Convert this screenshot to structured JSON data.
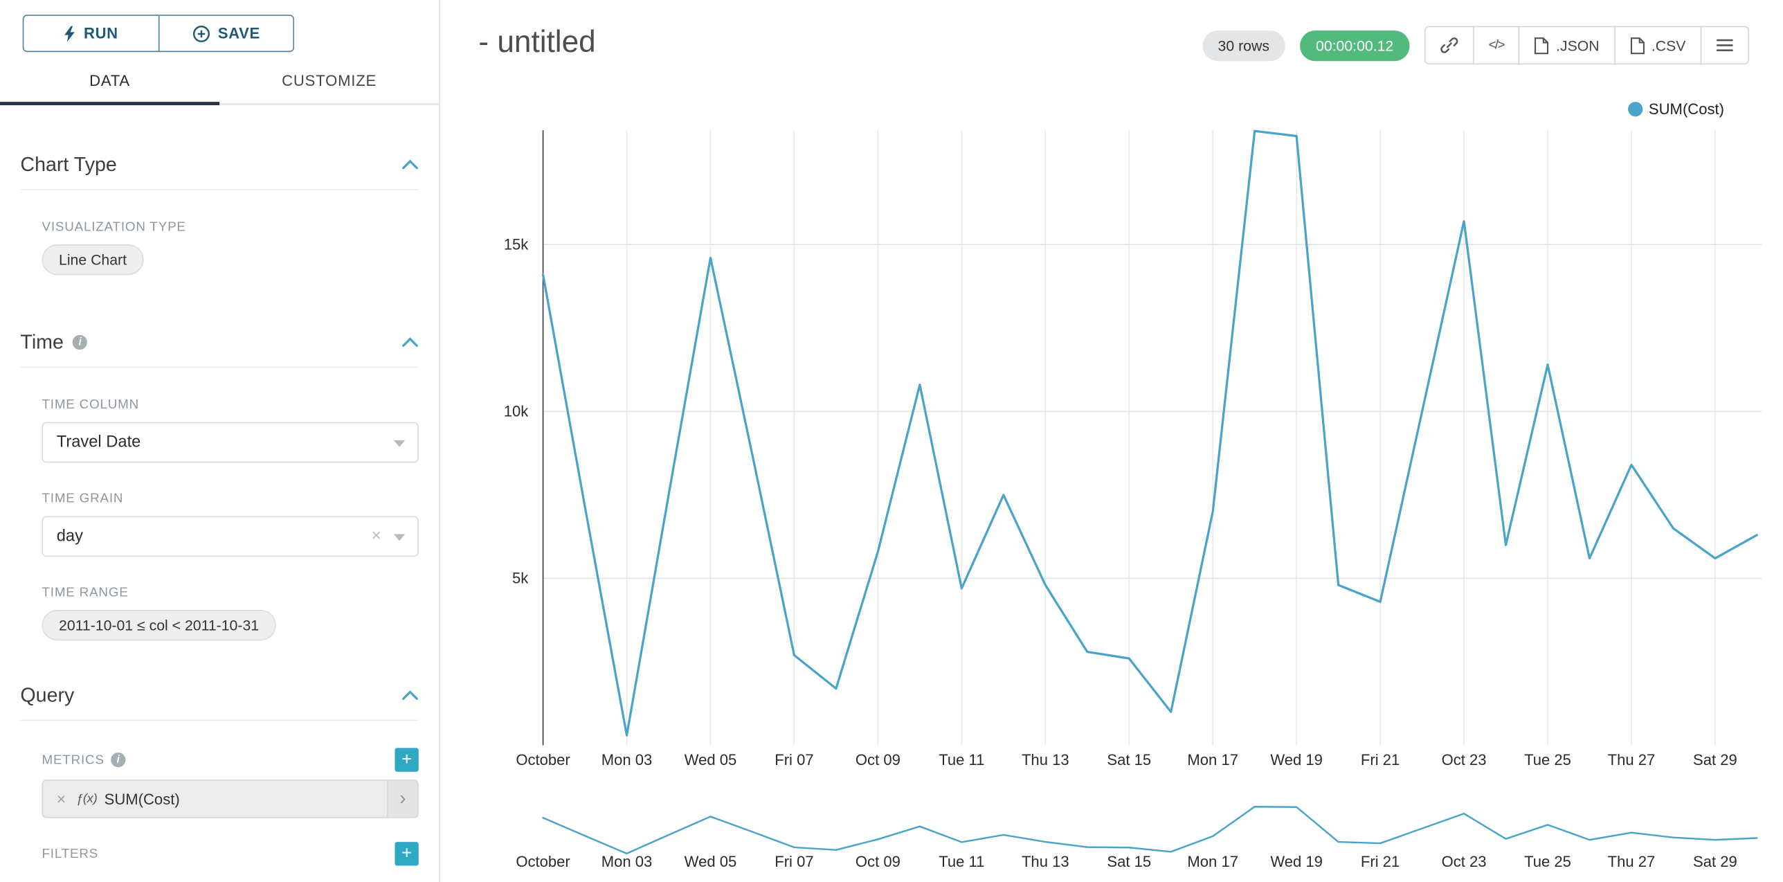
{
  "colors": {
    "accent": "#4aa4c7",
    "add_button": "#2fa8c4",
    "timer_green": "#53ba7d",
    "run_save_border": "#53819c",
    "run_save_text": "#1f5a74",
    "tab_active_underline": "#263445"
  },
  "icons": {
    "clear": "×",
    "embed": "</>",
    "add": "+",
    "expand": "›",
    "info": "i"
  },
  "sidebar": {
    "run_label": "RUN",
    "save_label": "SAVE",
    "tabs": [
      {
        "label": "DATA",
        "active": true
      },
      {
        "label": "CUSTOMIZE",
        "active": false
      }
    ],
    "sections": {
      "chart_type": {
        "title": "Chart Type",
        "viz_type_label": "VISUALIZATION TYPE",
        "viz_type_value": "Line Chart"
      },
      "time": {
        "title": "Time",
        "time_column_label": "TIME COLUMN",
        "time_column_value": "Travel Date",
        "time_grain_label": "TIME GRAIN",
        "time_grain_value": "day",
        "time_range_label": "TIME RANGE",
        "time_range_value": "2011-10-01 ≤ col < 2011-10-31"
      },
      "query": {
        "title": "Query",
        "metrics_label": "METRICS",
        "metric_prefix": "ƒ(x)",
        "metric_value": "SUM(Cost)",
        "filters_label": "FILTERS"
      }
    }
  },
  "header": {
    "title": "- untitled",
    "rows_badge": "30 rows",
    "timer": "00:00:00.12",
    "export_json_label": ".JSON",
    "export_csv_label": ".CSV"
  },
  "legend": {
    "label": "SUM(Cost)"
  },
  "chart_data": {
    "type": "line",
    "title": "- untitled",
    "xlabel": "",
    "ylabel": "",
    "x": [
      "2011-10-01",
      "2011-10-02",
      "2011-10-03",
      "2011-10-04",
      "2011-10-05",
      "2011-10-06",
      "2011-10-07",
      "2011-10-08",
      "2011-10-09",
      "2011-10-10",
      "2011-10-11",
      "2011-10-12",
      "2011-10-13",
      "2011-10-14",
      "2011-10-15",
      "2011-10-16",
      "2011-10-17",
      "2011-10-18",
      "2011-10-19",
      "2011-10-20",
      "2011-10-21",
      "2011-10-22",
      "2011-10-23",
      "2011-10-24",
      "2011-10-25",
      "2011-10-26",
      "2011-10-27",
      "2011-10-28",
      "2011-10-29",
      "2011-10-30"
    ],
    "series": [
      {
        "name": "SUM(Cost)",
        "values": [
          14100,
          7150,
          300,
          7500,
          14600,
          8700,
          2700,
          1700,
          5800,
          10800,
          4700,
          7500,
          4800,
          2800,
          2600,
          1000,
          7000,
          18400,
          18250,
          4800,
          4300,
          10000,
          15700,
          6000,
          11400,
          5600,
          8400,
          6500,
          5600,
          6300
        ]
      }
    ],
    "x_tick_labels": [
      "October",
      "Mon 03",
      "Wed 05",
      "Fri 07",
      "Oct 09",
      "Tue 11",
      "Thu 13",
      "Sat 15",
      "Mon 17",
      "Wed 19",
      "Fri 21",
      "Oct 23",
      "Tue 25",
      "Thu 27",
      "Sat 29"
    ],
    "y_ticks": [
      5000,
      10000,
      15000
    ],
    "y_tick_labels": [
      "5k",
      "10k",
      "15k"
    ],
    "ylim": [
      0,
      18500
    ],
    "grid": true,
    "legend_position": "top-right",
    "has_mini_context_chart": true
  }
}
